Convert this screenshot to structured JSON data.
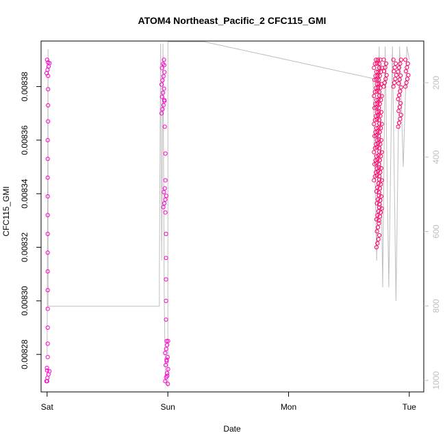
{
  "chart_data": {
    "type": "scatter",
    "title": "ATOM4 Northeast_Pacific_2 CFC115_GMI",
    "xlabel": "Date",
    "ylabel": "CFC115_GMI",
    "x_ticks": [
      "Sat",
      "Sun",
      "Mon",
      "Tue"
    ],
    "x_tick_day_values": [
      0,
      1,
      2,
      3
    ],
    "xlim_days": [
      -0.05,
      3.12
    ],
    "ylim": [
      0.008266,
      0.008397
    ],
    "y_ticks": [
      0.00828,
      0.0083,
      0.00832,
      0.00834,
      0.00836,
      0.00838
    ],
    "y_tick_labels": [
      "0.00828",
      "0.00830",
      "0.00832",
      "0.00834",
      "0.00836",
      "0.00838"
    ],
    "right_axis": {
      "label": "",
      "color": "#bebebe",
      "ticks": [
        200,
        400,
        600,
        800,
        1000
      ],
      "lim": [
        1031,
        88
      ]
    },
    "series": [
      {
        "color": "#ff00cc",
        "marker": "open-circle",
        "points": [
          [
            0.0,
            0.00827
          ],
          [
            0.0,
            0.008274
          ],
          [
            0.005,
            0.008279
          ],
          [
            0.005,
            0.008284
          ],
          [
            0.005,
            0.00829
          ],
          [
            0.005,
            0.008297
          ],
          [
            0.005,
            0.008304
          ],
          [
            0.005,
            0.008311
          ],
          [
            0.005,
            0.008318
          ],
          [
            0.005,
            0.008325
          ],
          [
            0.005,
            0.008332
          ],
          [
            0.005,
            0.008339
          ],
          [
            0.005,
            0.008346
          ],
          [
            0.005,
            0.008353
          ],
          [
            0.005,
            0.00836
          ],
          [
            0.008,
            0.008367
          ],
          [
            0.008,
            0.008373
          ],
          [
            0.008,
            0.008379
          ],
          [
            0.008,
            0.008384
          ],
          [
            0.008,
            0.008389
          ],
          [
            0.97,
            0.008388
          ],
          [
            0.97,
            0.008375
          ],
          [
            0.975,
            0.008365
          ],
          [
            0.98,
            0.008355
          ],
          [
            0.98,
            0.008345
          ],
          [
            0.98,
            0.008333
          ],
          [
            0.985,
            0.008325
          ],
          [
            0.985,
            0.008316
          ],
          [
            0.985,
            0.008308
          ],
          [
            0.985,
            0.0083
          ],
          [
            0.985,
            0.008293
          ],
          [
            0.99,
            0.008285
          ],
          [
            0.99,
            0.008278
          ],
          [
            0.995,
            0.008272
          ],
          [
            1.0,
            0.008269
          ]
        ],
        "dense_segments": [
          [
            0.007,
            0.00827,
            0.008275
          ],
          [
            0.008,
            0.008385,
            0.00839
          ],
          [
            0.96,
            0.00837,
            0.00839
          ],
          [
            0.975,
            0.008335,
            0.008342
          ],
          [
            0.99,
            0.00827,
            0.008285
          ]
        ]
      },
      {
        "color": "#ff0066",
        "marker": "open-circle",
        "dense_segments": [
          [
            2.72,
            0.008345,
            0.00839
          ],
          [
            2.74,
            0.00832,
            0.00839
          ],
          [
            2.76,
            0.00833,
            0.00839
          ],
          [
            2.8,
            0.00838,
            0.00839
          ],
          [
            2.88,
            0.00838,
            0.00839
          ],
          [
            2.92,
            0.008365,
            0.00839
          ],
          [
            2.98,
            0.00838,
            0.00839
          ]
        ]
      }
    ],
    "profile_line": {
      "color": "#bebebe",
      "points": [
        [
          0.0,
          0.00828
        ],
        [
          0.008,
          0.008394
        ],
        [
          0.008,
          0.008298
        ],
        [
          0.93,
          0.008298
        ],
        [
          0.93,
          0.008309
        ],
        [
          0.94,
          0.008396
        ],
        [
          0.95,
          0.008315
        ],
        [
          0.96,
          0.008396
        ],
        [
          0.97,
          0.0083
        ],
        [
          0.98,
          0.00827
        ],
        [
          1.0,
          0.008268
        ],
        [
          1.0,
          0.008397
        ],
        [
          1.3,
          0.008397
        ],
        [
          2.7,
          0.008383
        ],
        [
          2.73,
          0.008315
        ],
        [
          2.75,
          0.008395
        ],
        [
          2.78,
          0.008305
        ],
        [
          2.8,
          0.008395
        ],
        [
          2.83,
          0.008305
        ],
        [
          2.86,
          0.008395
        ],
        [
          2.89,
          0.0083
        ],
        [
          2.92,
          0.008395
        ],
        [
          2.95,
          0.00835
        ],
        [
          2.98,
          0.008395
        ],
        [
          3.0,
          0.00839
        ]
      ]
    }
  }
}
